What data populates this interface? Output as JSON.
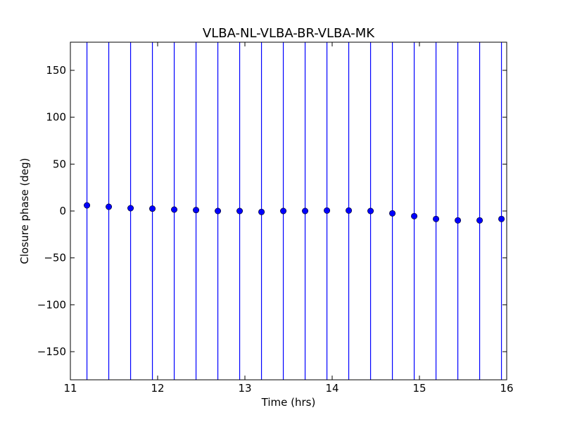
{
  "chart_data": {
    "type": "scatter",
    "title": "VLBA-NL-VLBA-BR-VLBA-MK",
    "xlabel": "Time (hrs)",
    "ylabel": "Closure phase (deg)",
    "xlim": [
      11,
      16
    ],
    "ylim": [
      -180,
      180
    ],
    "xticks": [
      11,
      12,
      13,
      14,
      15,
      16
    ],
    "xtick_labels": [
      "11",
      "12",
      "13",
      "14",
      "15",
      "16"
    ],
    "yticks": [
      150,
      100,
      50,
      0,
      -50,
      -100,
      -150
    ],
    "ytick_labels": [
      "150",
      "100",
      "50",
      "0",
      "−50",
      "−100",
      "−150"
    ],
    "grid": false,
    "legend": "none",
    "series": [
      {
        "marker": "circle",
        "color": "#0000ff",
        "error_bars": "vertical, span full y-range",
        "x": [
          11.19,
          11.44,
          11.69,
          11.94,
          12.19,
          12.44,
          12.69,
          12.94,
          13.19,
          13.44,
          13.69,
          13.94,
          14.19,
          14.44,
          14.69,
          14.94,
          15.19,
          15.44,
          15.69,
          15.94
        ],
        "y": [
          6,
          4.5,
          3,
          2.5,
          1.5,
          1,
          0,
          0,
          -1,
          0,
          0,
          0.5,
          0.5,
          0,
          -2.5,
          -5.5,
          -8.5,
          -10,
          -10,
          -8.5
        ]
      }
    ]
  }
}
